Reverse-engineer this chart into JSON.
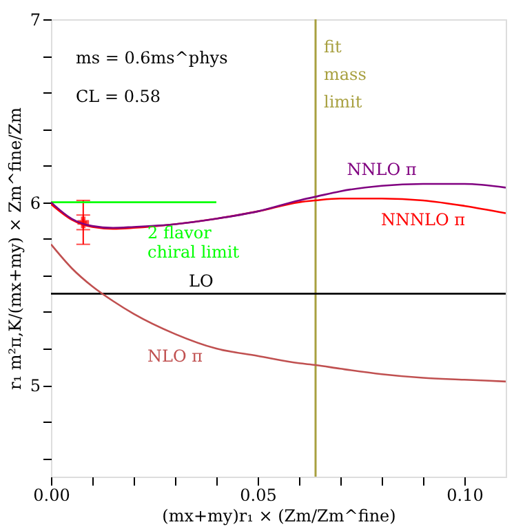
{
  "chart_data": {
    "type": "line",
    "xlabel": "(mx+my)r₁ × (Zm/Zm^fine)",
    "ylabel": "r₁ m²π,K/(mx+my) × Zm^fine/Zm",
    "xlim": [
      0,
      0.11
    ],
    "ylim": [
      4.5,
      7
    ],
    "xticks": [
      {
        "value": 0,
        "label": "0.00"
      },
      {
        "value": 0.01,
        "label": null
      },
      {
        "value": 0.02,
        "label": null
      },
      {
        "value": 0.03,
        "label": null
      },
      {
        "value": 0.04,
        "label": null
      },
      {
        "value": 0.05,
        "label": "0.05"
      },
      {
        "value": 0.06,
        "label": null
      },
      {
        "value": 0.07,
        "label": null
      },
      {
        "value": 0.08,
        "label": null
      },
      {
        "value": 0.09,
        "label": null
      },
      {
        "value": 0.1,
        "label": "0.10"
      }
    ],
    "yticks": [
      {
        "value": 4.6,
        "label": null
      },
      {
        "value": 4.8,
        "label": null
      },
      5,
      {
        "value": 5.2,
        "label": null
      },
      {
        "value": 5.4,
        "label": null
      },
      {
        "value": 5.6,
        "label": null
      },
      {
        "value": 5.8,
        "label": null
      },
      6,
      {
        "value": 6.2,
        "label": null
      },
      {
        "value": 6.4,
        "label": null
      },
      {
        "value": 6.6,
        "label": null
      },
      {
        "value": 6.8,
        "label": null
      },
      7
    ],
    "grid": false,
    "legend": false,
    "line_style": "solid",
    "x": [
      0,
      0.005,
      0.01,
      0.015,
      0.02,
      0.03,
      0.04,
      0.05,
      0.06,
      0.064,
      0.07,
      0.08,
      0.09,
      0.1,
      0.11
    ],
    "series": [
      {
        "name": "NNLO π",
        "color": "#800080",
        "values": [
          6.0,
          5.91,
          5.87,
          5.86,
          5.865,
          5.88,
          5.91,
          5.95,
          6.01,
          6.03,
          6.06,
          6.09,
          6.1,
          6.1,
          6.08
        ]
      },
      {
        "name": "NNNLO π",
        "color": "#ff0000",
        "values": [
          5.99,
          5.905,
          5.865,
          5.855,
          5.86,
          5.88,
          5.91,
          5.95,
          6.0,
          6.01,
          6.02,
          6.02,
          6.01,
          5.98,
          5.94
        ]
      },
      {
        "name": "NLO π",
        "color": "#c05050",
        "values": [
          5.77,
          5.64,
          5.54,
          5.46,
          5.39,
          5.28,
          5.2,
          5.16,
          5.12,
          5.11,
          5.09,
          5.06,
          5.04,
          5.03,
          5.02
        ]
      },
      {
        "name": "LO",
        "color": "#000000",
        "x": [
          0,
          0.11
        ],
        "values": [
          5.5,
          5.5
        ]
      },
      {
        "name": "2 flavor chiral limit",
        "color": "#00ff00",
        "x": [
          0,
          0.04
        ],
        "values": [
          6.0,
          6.0
        ]
      },
      {
        "type": "scatter",
        "marker": "cross",
        "color": "#ff0000",
        "x": [
          0.0078
        ],
        "values": [
          5.89
        ],
        "errors": [
          [
            5.85,
            5.93
          ]
        ]
      },
      {
        "type": "scatter",
        "marker": "cross",
        "color": "#ff0000",
        "x": [
          0.0078
        ],
        "values": [
          5.89
        ],
        "errors": [
          [
            5.77,
            6.01
          ]
        ]
      }
    ],
    "ref_lines": [
      {
        "axis": "x",
        "value": 0.064,
        "label": "fit mass limit",
        "color": "#a8a040"
      }
    ],
    "annotations": [
      "ms = 0.6ms^phys",
      "CL = 0.58"
    ]
  }
}
